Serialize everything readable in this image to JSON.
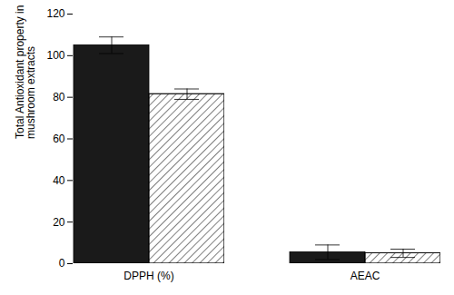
{
  "chart_data": {
    "type": "bar",
    "categories": [
      "DPPH (%)",
      "AEAC"
    ],
    "series": [
      {
        "color": "#1a1a1a",
        "values": [
          105.0,
          5.5
        ],
        "errors": [
          4.0,
          3.5
        ]
      },
      {
        "color": "#ffffff",
        "values": [
          81.5,
          5.0
        ],
        "errors": [
          2.5,
          2.0
        ]
      }
    ],
    "ylabel": "Total Antioxidant property in\nmushroom extracts",
    "ylim": [
      0,
      120
    ],
    "yticks": [
      0,
      20,
      40,
      60,
      80,
      100,
      120
    ],
    "grid": false
  }
}
